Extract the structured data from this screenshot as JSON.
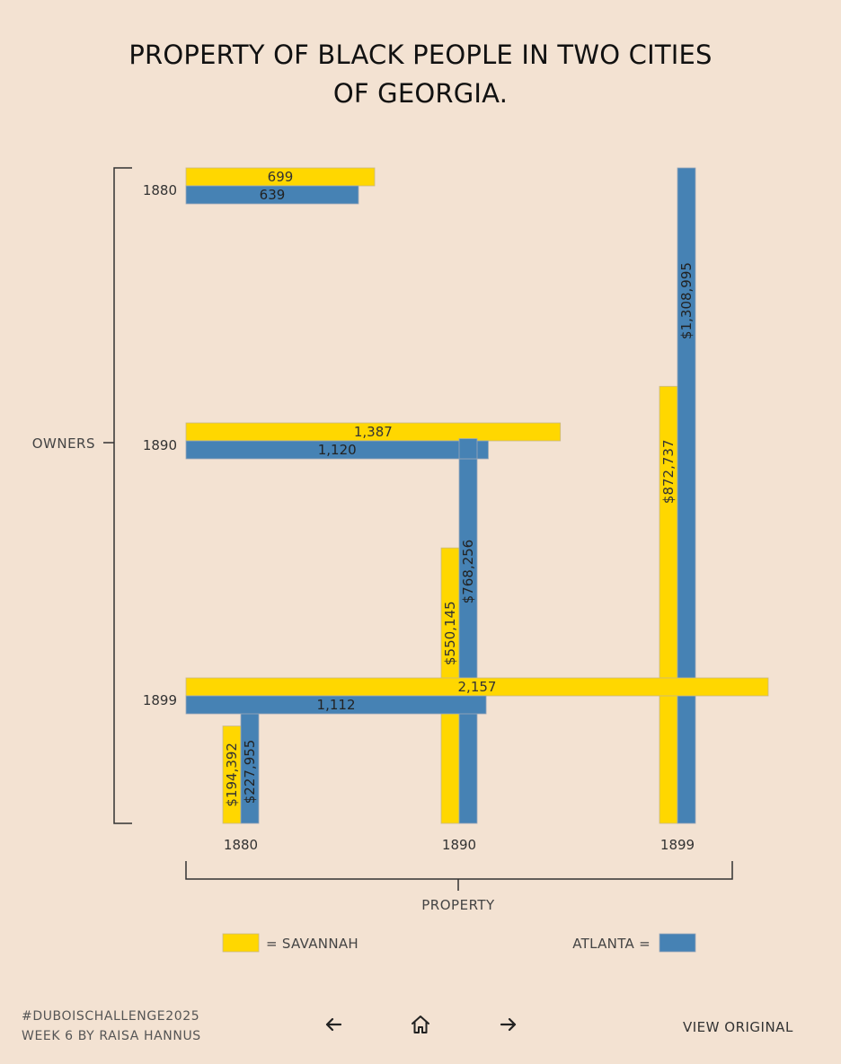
{
  "title_lines": [
    "PROPERTY OF BLACK PEOPLE IN TWO CITIES",
    "OF GEORGIA."
  ],
  "colors": {
    "savannah": "#ffd700",
    "atlanta": "#4682b4",
    "background": "#f3e2d2",
    "label": "#333333"
  },
  "chart_data": {
    "type": "bar",
    "years": [
      "1880",
      "1890",
      "1899"
    ],
    "owners": {
      "axis_label": "OWNERS",
      "orientation": "horizontal",
      "series": [
        {
          "name": "SAVANNAH",
          "values": [
            699,
            1387,
            2157
          ],
          "labels": [
            "699",
            "1,387",
            "2,157"
          ]
        },
        {
          "name": "ATLANTA",
          "values": [
            639,
            1120,
            1112
          ],
          "labels": [
            "639",
            "1,120",
            "1,112"
          ]
        }
      ],
      "xlim": [
        0,
        2157
      ]
    },
    "property": {
      "axis_label": "PROPERTY",
      "orientation": "vertical",
      "series": [
        {
          "name": "SAVANNAH",
          "values": [
            194392,
            550145,
            872737
          ],
          "labels": [
            "$194,392",
            "$550,145",
            "$872,737"
          ]
        },
        {
          "name": "ATLANTA",
          "values": [
            227955,
            768256,
            1308995
          ],
          "labels": [
            "$227,955",
            "$768,256",
            "$1,308,995"
          ]
        }
      ],
      "ylim": [
        0,
        1308995
      ]
    },
    "legend": {
      "savannah": "= SAVANNAH",
      "atlanta": "ATLANTA ="
    }
  },
  "footer": {
    "hashtag": "#DUBOISCHALLENGE2025",
    "credit": "WEEK 6 BY RAISA HANNUS"
  },
  "nav": {
    "back_icon": "arrow-left-icon",
    "home_icon": "home-icon",
    "forward_icon": "arrow-right-icon"
  },
  "view_original": "VIEW ORIGINAL"
}
